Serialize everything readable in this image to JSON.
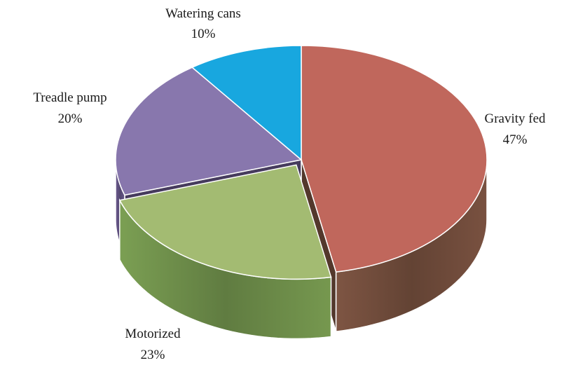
{
  "chart_data": {
    "type": "pie",
    "style": "3d",
    "title": "",
    "categories": [
      "Gravity fed",
      "Motorized",
      "Treadle pump",
      "Watering cans"
    ],
    "values": [
      47,
      23,
      20,
      10
    ],
    "unit": "%",
    "labels": [
      {
        "name": "Gravity fed",
        "value_text": "47%"
      },
      {
        "name": "Motorized",
        "value_text": "23%"
      },
      {
        "name": "Treadle pump",
        "value_text": "20%"
      },
      {
        "name": "Watering cans",
        "value_text": "10%"
      }
    ],
    "colors": {
      "Gravity fed": "#c0675c",
      "Motorized": "#a3bb72",
      "Treadle pump": "#8877ad",
      "Watering cans": "#18a7df"
    },
    "side_colors": {
      "Gravity fed": "#6e4a3a",
      "Motorized": "#6b8a48",
      "Treadle pump": "#5d4f7c",
      "Watering cans": "#0f6f95"
    },
    "exploded": "Motorized",
    "start": "12 o'clock",
    "direction": "clockwise",
    "legend": "none"
  }
}
